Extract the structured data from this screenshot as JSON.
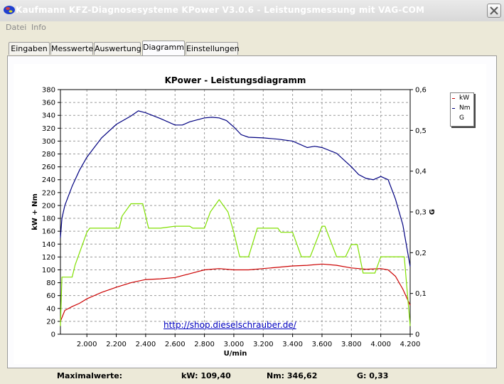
{
  "window": {
    "title": "Kaufmann KFZ-Diagnosesysteme  KPower  V3.0.6  -  Leistungsmessung mit VAG-COM",
    "close_symbol": "✕"
  },
  "menu": [
    "Datei",
    "Info"
  ],
  "tabs": [
    {
      "label": "Eingaben",
      "active": false
    },
    {
      "label": "Messwerte",
      "active": false
    },
    {
      "label": "Auswertung",
      "active": false
    },
    {
      "label": "Diagramm",
      "active": true
    },
    {
      "label": "Einstellungen",
      "active": false
    }
  ],
  "link_text": "http://shop.dieselschrauber.de/",
  "legend": [
    {
      "label": "kW",
      "color": "#cc0000"
    },
    {
      "label": "Nm",
      "color": "#000080"
    },
    {
      "label": "G",
      "color": "#80e000"
    }
  ],
  "footer": {
    "label": "Maximalwerte:",
    "kw": "kW: 109,40",
    "nm": "Nm: 346,62",
    "g": "G: 0,33"
  },
  "chart_data": {
    "type": "line",
    "title": "KPower - Leistungsdiagramm",
    "xlabel": "U/min",
    "ylabel": "kW + Nm",
    "y2label": "G",
    "xlim": [
      1820,
      4200
    ],
    "ylim": [
      0,
      380
    ],
    "y2lim": [
      0,
      0.6
    ],
    "x_ticks": [
      "2.000",
      "2.200",
      "2.400",
      "2.600",
      "2.800",
      "3.000",
      "3.200",
      "3.400",
      "3.600",
      "3.800",
      "4.000",
      "4.200"
    ],
    "x_tick_values": [
      2000,
      2200,
      2400,
      2600,
      2800,
      3000,
      3200,
      3400,
      3600,
      3800,
      4000,
      4200
    ],
    "y_ticks": [
      0,
      20,
      40,
      60,
      80,
      100,
      120,
      140,
      160,
      180,
      200,
      220,
      240,
      260,
      280,
      300,
      320,
      340,
      360,
      380
    ],
    "y2_ticks": [
      "0",
      "0,1",
      "0,2",
      "0,3",
      "0,4",
      "0,5",
      "0,6"
    ],
    "y2_tick_values": [
      0,
      0.1,
      0.2,
      0.3,
      0.4,
      0.5,
      0.6
    ],
    "grid": true,
    "legend_position": "top-right",
    "series": [
      {
        "name": "kW",
        "color": "#cc0000",
        "axis": "left",
        "x": [
          1820,
          1850,
          1900,
          1950,
          2000,
          2100,
          2200,
          2300,
          2400,
          2500,
          2600,
          2700,
          2800,
          2900,
          3000,
          3100,
          3200,
          3300,
          3400,
          3500,
          3600,
          3700,
          3800,
          3900,
          4000,
          4050,
          4100,
          4150,
          4200
        ],
        "values": [
          20,
          37,
          43,
          48,
          55,
          65,
          73,
          80,
          85,
          86,
          88,
          94,
          100,
          102,
          100,
          100,
          102,
          104,
          106,
          107,
          109,
          107,
          103,
          101,
          102,
          100,
          90,
          70,
          45
        ]
      },
      {
        "name": "Nm",
        "color": "#000080",
        "axis": "left",
        "x": [
          1820,
          1830,
          1850,
          1900,
          1950,
          2000,
          2100,
          2200,
          2300,
          2350,
          2400,
          2500,
          2600,
          2650,
          2700,
          2800,
          2850,
          2900,
          2950,
          3000,
          3050,
          3100,
          3200,
          3300,
          3400,
          3500,
          3550,
          3600,
          3700,
          3800,
          3850,
          3900,
          3950,
          4000,
          4050,
          4100,
          4150,
          4200
        ],
        "values": [
          150,
          180,
          200,
          230,
          255,
          275,
          305,
          326,
          339,
          347,
          344,
          335,
          325,
          325,
          330,
          336,
          337,
          336,
          332,
          322,
          310,
          306,
          305,
          303,
          300,
          290,
          292,
          290,
          281,
          260,
          248,
          242,
          240,
          245,
          240,
          210,
          170,
          105
        ]
      },
      {
        "name": "G",
        "color": "#80e000",
        "axis": "right",
        "x": [
          1820,
          1830,
          1900,
          1920,
          2000,
          2020,
          2220,
          2240,
          2300,
          2380,
          2420,
          2500,
          2600,
          2700,
          2720,
          2800,
          2840,
          2900,
          2960,
          3000,
          3040,
          3100,
          3160,
          3300,
          3320,
          3400,
          3460,
          3520,
          3600,
          3620,
          3700,
          3760,
          3800,
          3840,
          3880,
          3900,
          3960,
          4000,
          4040,
          4080,
          4160,
          4200
        ],
        "values": [
          0.02,
          0.14,
          0.14,
          0.17,
          0.25,
          0.26,
          0.26,
          0.29,
          0.32,
          0.32,
          0.26,
          0.26,
          0.265,
          0.265,
          0.26,
          0.26,
          0.3,
          0.33,
          0.3,
          0.25,
          0.19,
          0.19,
          0.26,
          0.26,
          0.25,
          0.25,
          0.19,
          0.19,
          0.265,
          0.265,
          0.19,
          0.19,
          0.22,
          0.22,
          0.15,
          0.15,
          0.15,
          0.19,
          0.19,
          0.19,
          0.19,
          0.02
        ]
      }
    ]
  }
}
